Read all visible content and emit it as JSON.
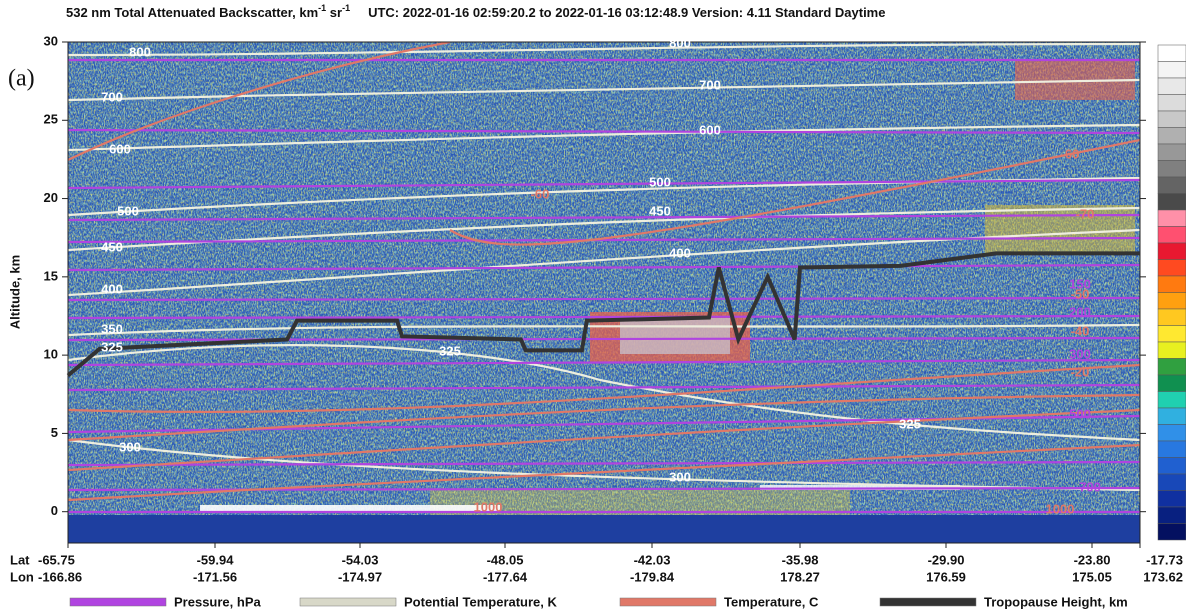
{
  "chart_data": {
    "type": "curtain",
    "title_parts": [
      "532 nm Total Attenuated Backscatter, km",
      "-1",
      " sr",
      "-1",
      "UTC:  2022-01-16 02:59:20.2  to  2022-01-16 03:12:48.9     Version: 4.11  Standard  Daytime"
    ],
    "panel_label": "(a)",
    "ylabel": "Altitude, km",
    "ylim": [
      -2,
      30
    ],
    "yticks": [
      0,
      5,
      10,
      15,
      20,
      25,
      30
    ],
    "lat_title": "Lat",
    "lon_title": "Lon",
    "lat_labels": [
      "-65.75",
      "-59.94",
      "-54.03",
      "-48.05",
      "-42.03",
      "-35.98",
      "-29.90",
      "-23.80",
      "-17.73"
    ],
    "lon_labels": [
      "-166.86",
      "-171.56",
      "-174.97",
      "-177.64",
      "-179.84",
      "178.27",
      "176.59",
      "175.05",
      "173.62"
    ],
    "tick_lats": [
      -65.75,
      -59.94,
      -54.03,
      -48.05,
      -42.03,
      -35.98,
      -29.9,
      -23.8,
      -17.73
    ],
    "series": [
      {
        "name": "Pressure, hPa",
        "color": "#b044e0"
      },
      {
        "name": "Potential Temperature, K",
        "color": "#d8d8c8"
      },
      {
        "name": "Temperature, C",
        "color": "#e07868"
      },
      {
        "name": "Tropopause Height, km",
        "color": "#333333",
        "x": [
          -65.75,
          -64.5,
          -57.0,
          -56.6,
          -52.5,
          -52.3,
          -47.4,
          -47.2,
          -44.9,
          -44.7,
          -39.7,
          -39.3,
          -38.5,
          -37.3,
          -36.2,
          -35.98,
          -31.8,
          -27.8,
          -17.73
        ],
        "values": [
          8.7,
          10.4,
          11.0,
          12.2,
          12.2,
          11.2,
          11.0,
          10.3,
          10.3,
          12.2,
          12.4,
          15.6,
          11.0,
          15.0,
          11.0,
          15.6,
          15.7,
          16.5,
          16.5
        ]
      }
    ],
    "contour_labels": [
      "800",
      "800",
      "700",
      "700",
      "600",
      "600",
      "500",
      "500",
      "450",
      "450",
      "400",
      "400",
      "350",
      "325",
      "325",
      "325",
      "300",
      "300",
      "-60",
      "-60",
      "-50",
      "-70",
      "-40",
      "-20",
      "150",
      "200",
      "300",
      "500",
      "700",
      "1000",
      "1000"
    ]
  }
}
